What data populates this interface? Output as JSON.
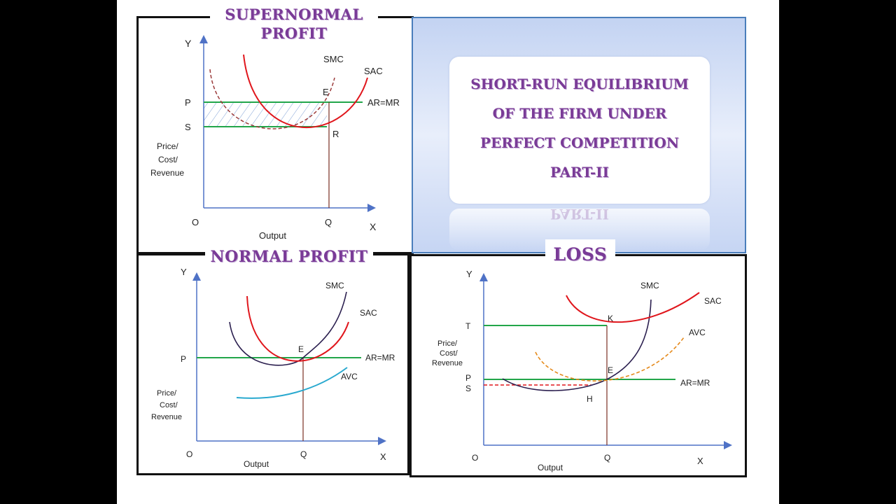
{
  "main_title": {
    "lines": [
      "SHORT-RUN EQUILIBRIUM",
      "OF THE FIRM UNDER",
      "PERFECT COMPETITION",
      "PART-II"
    ],
    "reflection_text": "PART-II"
  },
  "panels": {
    "supernormal": {
      "heading": [
        "SUPERNORMAL",
        "PROFIT"
      ],
      "labels": {
        "y": "Y",
        "x": "X",
        "origin": "O",
        "xlabel": "Output",
        "ylabel": [
          "Price/",
          "Cost/",
          "Revenue"
        ],
        "p": "P",
        "s": "S",
        "q": "Q",
        "e": "E",
        "r": "R",
        "smc": "SMC",
        "sac": "SAC",
        "armr": "AR=MR"
      }
    },
    "normal": {
      "heading": "NORMAL PROFIT",
      "labels": {
        "y": "Y",
        "x": "X",
        "origin": "O",
        "xlabel": "Output",
        "ylabel": [
          "Price/",
          "Cost/",
          "Revenue"
        ],
        "p": "P",
        "q": "Q",
        "e": "E",
        "smc": "SMC",
        "sac": "SAC",
        "avc": "AVC",
        "armr": "AR=MR"
      }
    },
    "loss": {
      "heading": "LOSS",
      "labels": {
        "y": "Y",
        "x": "X",
        "origin": "O",
        "xlabel": "Output",
        "ylabel": [
          "Price/",
          "Cost/",
          "Revenue"
        ],
        "t": "T",
        "p": "P",
        "s": "S",
        "q": "Q",
        "k": "K",
        "e": "E",
        "h": "H",
        "smc": "SMC",
        "sac": "SAC",
        "avc": "AVC",
        "armr": "AR=MR"
      }
    }
  },
  "colors": {
    "heading": "#7a3b97",
    "price_line": "#22a64a",
    "sac_curve": "#e0161c",
    "smc_curve": "#2b1f4f",
    "avc_curve": "#29a9cf",
    "avc_dashed": "#e58a1c",
    "axis": "#4f72c6",
    "quantity_line": "#7a2e22",
    "hatch": "#7fa1d6"
  }
}
